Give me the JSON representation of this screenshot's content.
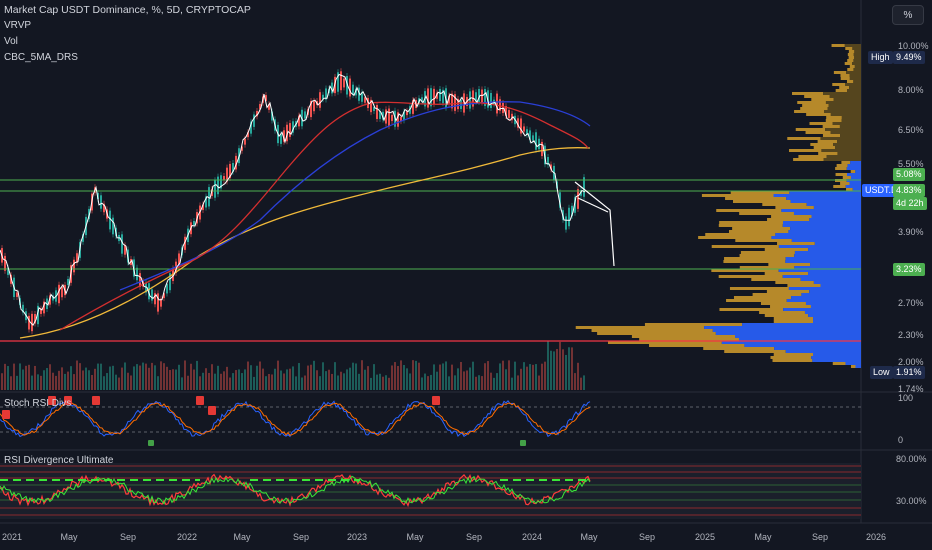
{
  "legend": {
    "title": "Market Cap USDT Dominance, %, 5D, CRYPTOCAP",
    "indicators": [
      "VRVP",
      "Vol",
      "CBC_5MA_DRS"
    ]
  },
  "scale_button": "%",
  "price_axis": {
    "ticks": [
      "10.00%",
      "8.00%",
      "6.50%",
      "5.50%",
      "3.90%",
      "2.70%",
      "2.30%",
      "2.00%",
      "1.74%"
    ],
    "high_label": "High",
    "high_value": "9.49%",
    "low_label": "Low",
    "low_value": "1.91%",
    "level_upper": "5.08%",
    "symbol": "USDT.D",
    "current": "4.83%",
    "countdown": "4d 22h",
    "level_lower": "3.23%"
  },
  "stoch_panel": {
    "title": "Stoch RSI Divs",
    "ticks": [
      "100",
      "0"
    ]
  },
  "rsi_panel": {
    "title": "RSI Divergence Ultimate",
    "ticks": [
      "80.00%",
      "30.00%"
    ]
  },
  "time_axis": [
    "2021",
    "May",
    "Sep",
    "2022",
    "May",
    "Sep",
    "2023",
    "May",
    "Sep",
    "2024",
    "May",
    "Sep",
    "2025",
    "May",
    "Sep",
    "2026"
  ],
  "colors": {
    "background": "#131722",
    "price": "#ffffff",
    "ma_red": "#e53935",
    "ma_blue": "#2a3fd6",
    "ma_orange": "#f0b93a",
    "candle_up": "#26a69a",
    "candle_down": "#ef5350",
    "profile_gold": "#c9962b",
    "profile_blue": "#2962ff",
    "green_level": "#4caf50",
    "red_level": "#f23645"
  }
}
